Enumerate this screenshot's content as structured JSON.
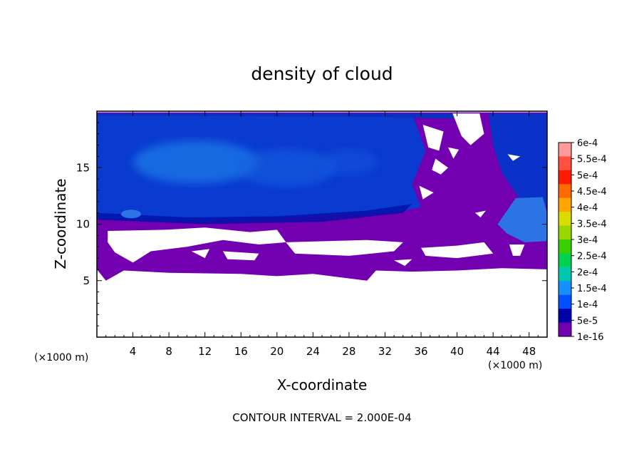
{
  "chart_data": {
    "type": "heatmap",
    "title": "density of cloud",
    "xlabel": "X-coordinate",
    "ylabel": "Z-coordinate",
    "x_unit": "(×1000 m)",
    "y_unit": "(×1000 m)",
    "xlim": [
      0,
      50
    ],
    "ylim": [
      0,
      20
    ],
    "x_ticks": [
      4,
      8,
      12,
      16,
      20,
      24,
      28,
      32,
      36,
      40,
      44,
      48
    ],
    "y_ticks": [
      5,
      10,
      15
    ],
    "footnote": "CONTOUR INTERVAL = 2.000E-04",
    "colorbar": {
      "labels": [
        "6e-4",
        "5.5e-4",
        "5e-4",
        "4.5e-4",
        "4e-4",
        "3.5e-4",
        "3e-4",
        "2.5e-4",
        "2e-4",
        "1.5e-4",
        "1e-4",
        "5e-5",
        "1e-16"
      ],
      "colors": [
        "#ff9a9a",
        "#ff5040",
        "#ff1a00",
        "#ff6a00",
        "#ffa400",
        "#d8dc00",
        "#98d800",
        "#3ad000",
        "#00d250",
        "#00c8b0",
        "#1490ff",
        "#0050ff",
        "#0000a8",
        "#7300b0"
      ]
    },
    "field": {
      "cloud_base_min": 6,
      "cloud_base_max": 9.7,
      "cloud_top": 19.8,
      "min_color": "#7300b0",
      "main_color": "#0a3ad0",
      "core_color": "#1a7ae8"
    }
  }
}
